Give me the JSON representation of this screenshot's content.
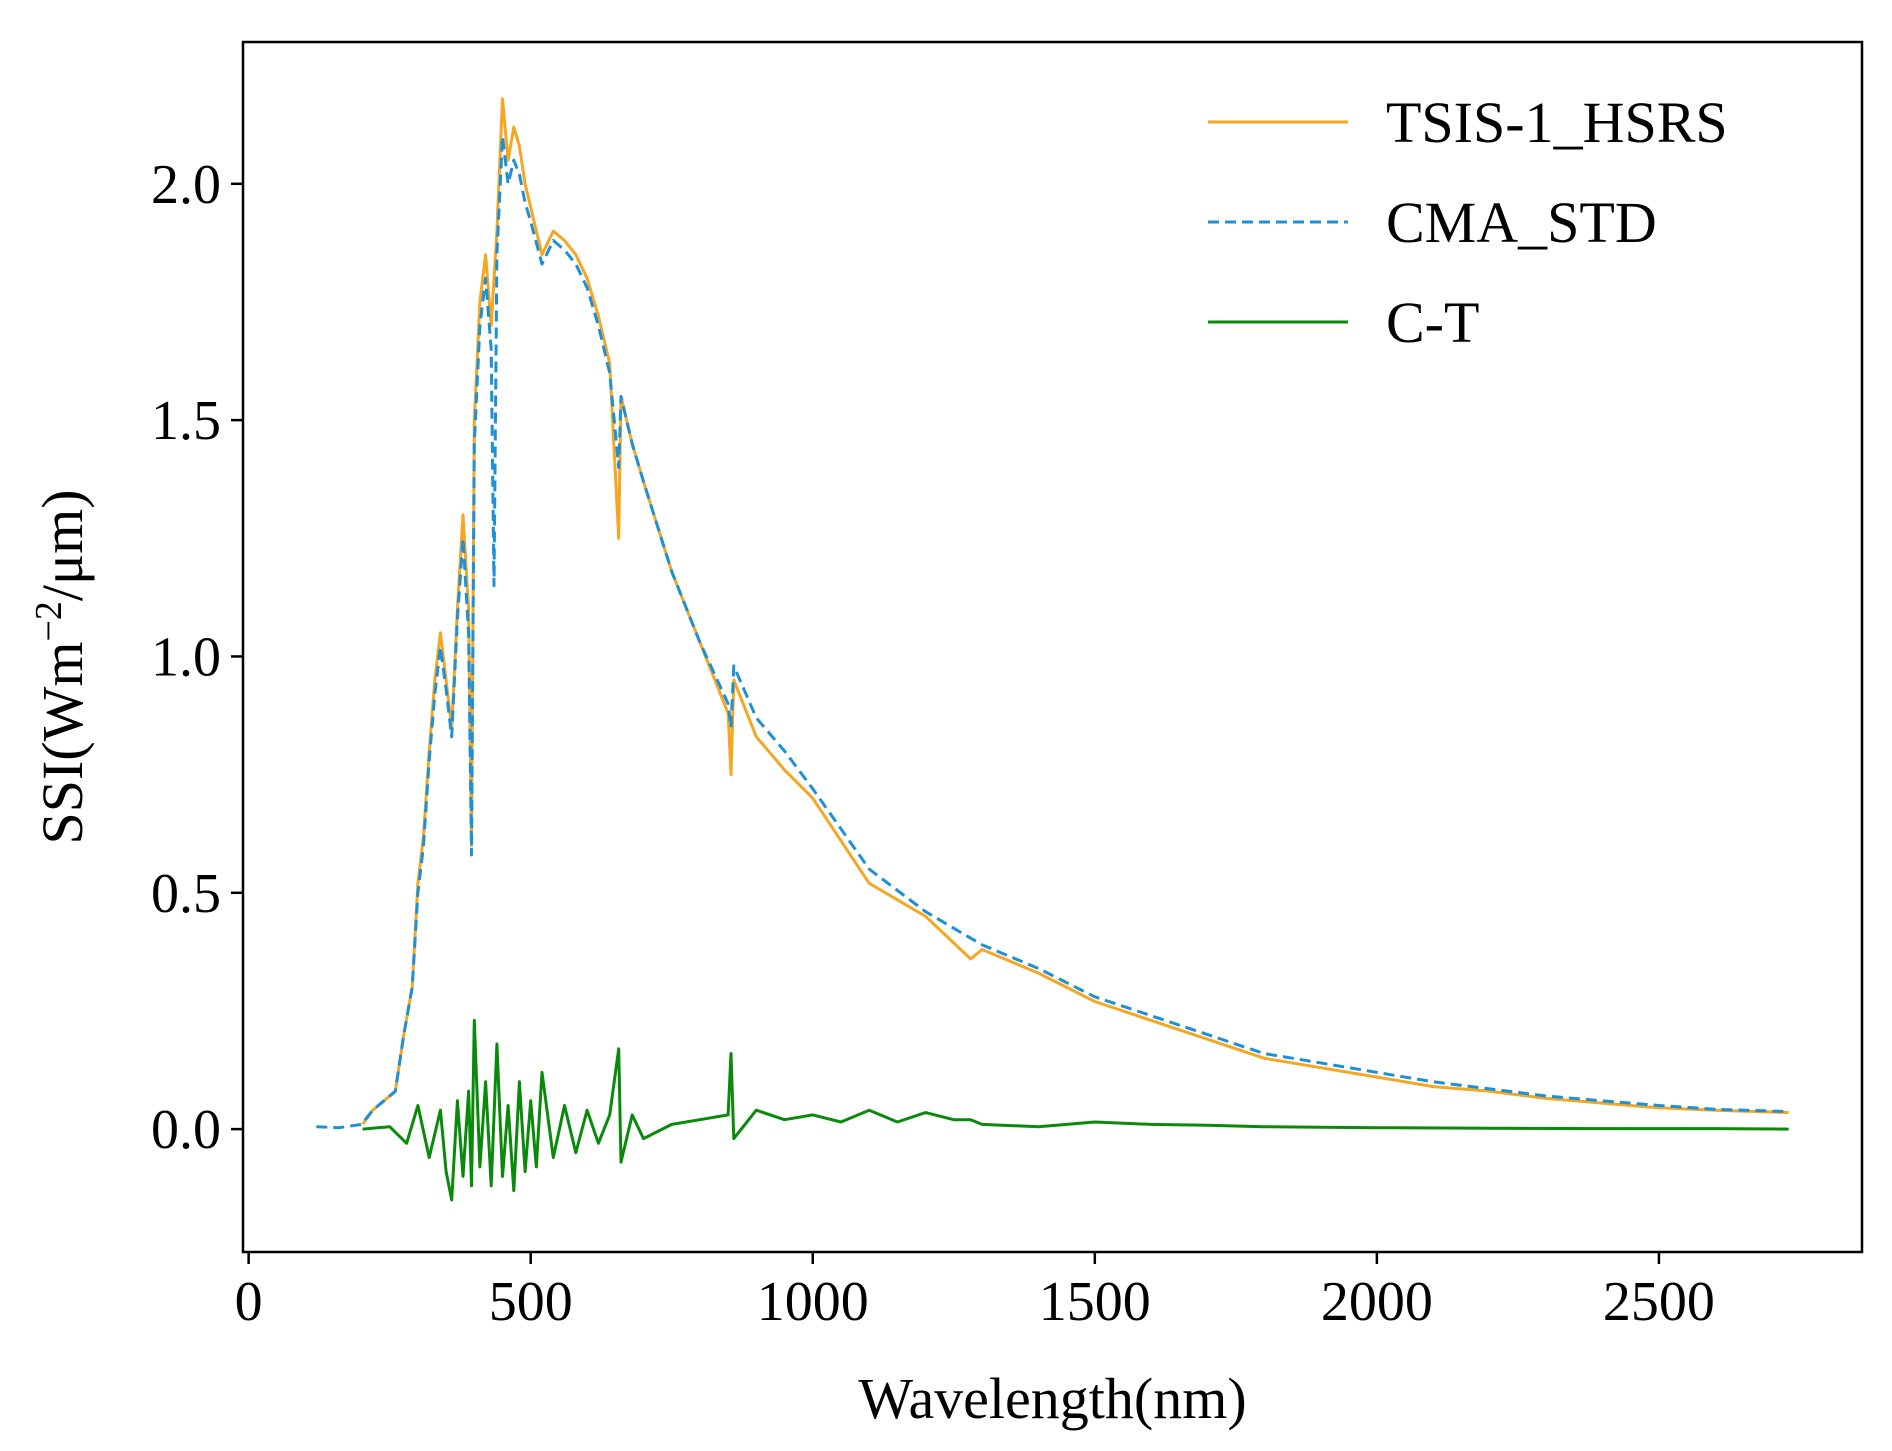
{
  "chart_data": {
    "type": "line",
    "title": "",
    "xlabel": "Wavelength(nm)",
    "ylabel_prefix": "SSI(Wm",
    "ylabel_sup": "−2",
    "ylabel_suffix": "/μm)",
    "xlim": [
      -10,
      2860
    ],
    "ylim": [
      -0.26,
      2.3
    ],
    "xticks": [
      0,
      500,
      1000,
      1500,
      2000,
      2500
    ],
    "xtick_labels": [
      "0",
      "500",
      "1000",
      "1500",
      "2000",
      "2500"
    ],
    "yticks": [
      0.0,
      0.5,
      1.0,
      1.5,
      2.0
    ],
    "ytick_labels": [
      "0.0",
      "0.5",
      "1.0",
      "1.5",
      "2.0"
    ],
    "legend_position": "top-right",
    "series": [
      {
        "name": "TSIS-1_HSRS",
        "color": "#F5A623",
        "style": "solid",
        "x": [
          202,
          220,
          240,
          260,
          275,
          290,
          300,
          310,
          320,
          330,
          340,
          350,
          360,
          370,
          380,
          390,
          395,
          400,
          410,
          420,
          430,
          440,
          450,
          460,
          470,
          480,
          490,
          500,
          520,
          540,
          560,
          580,
          600,
          620,
          640,
          656,
          660,
          680,
          700,
          750,
          800,
          850,
          855,
          860,
          900,
          950,
          1000,
          1100,
          1200,
          1280,
          1300,
          1400,
          1500,
          1600,
          1700,
          1800,
          1900,
          2000,
          2100,
          2200,
          2300,
          2400,
          2500,
          2600,
          2730
        ],
        "y": [
          0.01,
          0.04,
          0.06,
          0.08,
          0.2,
          0.3,
          0.52,
          0.62,
          0.8,
          0.95,
          1.05,
          0.95,
          0.85,
          1.1,
          1.3,
          1.1,
          0.6,
          1.5,
          1.75,
          1.85,
          1.7,
          1.9,
          2.18,
          2.05,
          2.12,
          2.08,
          2.0,
          1.95,
          1.85,
          1.9,
          1.88,
          1.85,
          1.8,
          1.72,
          1.62,
          1.25,
          1.55,
          1.45,
          1.37,
          1.18,
          1.03,
          0.88,
          0.75,
          0.95,
          0.83,
          0.76,
          0.7,
          0.52,
          0.45,
          0.36,
          0.38,
          0.33,
          0.27,
          0.23,
          0.19,
          0.15,
          0.13,
          0.11,
          0.09,
          0.08,
          0.065,
          0.055,
          0.045,
          0.04,
          0.035
        ]
      },
      {
        "name": "CMA_STD",
        "color": "#1E90D6",
        "style": "dashed",
        "x": [
          120,
          160,
          200,
          220,
          240,
          260,
          275,
          290,
          300,
          310,
          320,
          330,
          340,
          350,
          360,
          370,
          380,
          390,
          395,
          400,
          410,
          420,
          430,
          435,
          440,
          450,
          460,
          470,
          480,
          490,
          500,
          520,
          540,
          560,
          580,
          600,
          620,
          640,
          656,
          660,
          680,
          700,
          750,
          800,
          850,
          855,
          860,
          900,
          950,
          1000,
          1100,
          1200,
          1300,
          1400,
          1500,
          1600,
          1700,
          1800,
          1900,
          2000,
          2100,
          2200,
          2300,
          2400,
          2500,
          2600,
          2730
        ],
        "y": [
          0.005,
          0.003,
          0.01,
          0.04,
          0.06,
          0.08,
          0.2,
          0.3,
          0.5,
          0.6,
          0.78,
          0.92,
          1.02,
          0.93,
          0.83,
          1.08,
          1.25,
          1.05,
          0.58,
          1.45,
          1.7,
          1.8,
          1.65,
          1.15,
          1.85,
          2.1,
          2.0,
          2.05,
          2.02,
          1.96,
          1.92,
          1.83,
          1.88,
          1.86,
          1.83,
          1.78,
          1.7,
          1.6,
          1.4,
          1.55,
          1.45,
          1.37,
          1.18,
          1.03,
          0.9,
          0.85,
          0.98,
          0.87,
          0.8,
          0.72,
          0.55,
          0.46,
          0.39,
          0.34,
          0.28,
          0.24,
          0.2,
          0.16,
          0.14,
          0.12,
          0.1,
          0.085,
          0.07,
          0.06,
          0.05,
          0.042,
          0.037
        ]
      },
      {
        "name": "C-T",
        "color": "#0A8A0A",
        "style": "solid",
        "x": [
          202,
          250,
          280,
          300,
          320,
          340,
          350,
          360,
          370,
          380,
          390,
          395,
          400,
          410,
          420,
          430,
          440,
          450,
          460,
          470,
          480,
          490,
          500,
          510,
          520,
          540,
          560,
          580,
          600,
          620,
          640,
          656,
          660,
          680,
          700,
          750,
          800,
          850,
          855,
          860,
          900,
          950,
          1000,
          1050,
          1100,
          1150,
          1200,
          1250,
          1280,
          1300,
          1400,
          1500,
          1600,
          1700,
          1800,
          1900,
          2000,
          2200,
          2400,
          2600,
          2730
        ],
        "y": [
          0.0,
          0.005,
          -0.03,
          0.05,
          -0.06,
          0.04,
          -0.09,
          -0.15,
          0.06,
          -0.1,
          0.08,
          -0.12,
          0.23,
          -0.08,
          0.1,
          -0.12,
          0.18,
          -0.1,
          0.05,
          -0.13,
          0.1,
          -0.09,
          0.06,
          -0.08,
          0.12,
          -0.06,
          0.05,
          -0.05,
          0.04,
          -0.03,
          0.03,
          0.17,
          -0.07,
          0.03,
          -0.02,
          0.01,
          0.02,
          0.03,
          0.16,
          -0.02,
          0.04,
          0.02,
          0.03,
          0.015,
          0.04,
          0.015,
          0.035,
          0.02,
          0.02,
          0.01,
          0.005,
          0.015,
          0.01,
          0.008,
          0.005,
          0.004,
          0.003,
          0.002,
          0.001,
          0.001,
          0.0
        ]
      }
    ]
  }
}
